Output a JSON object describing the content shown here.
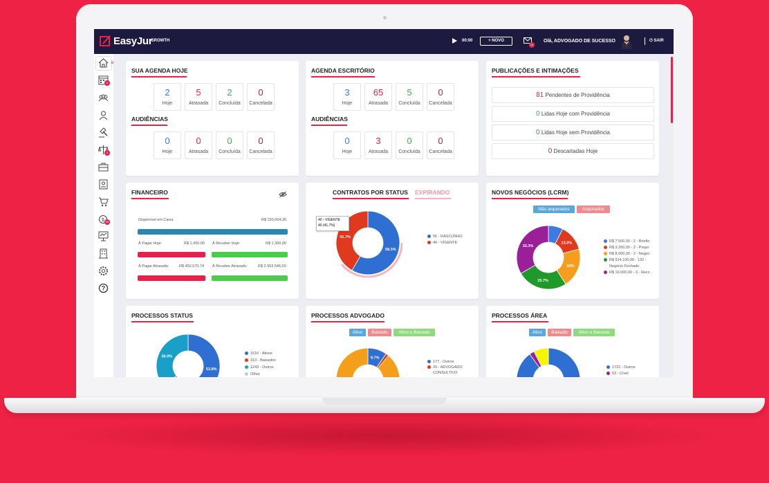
{
  "topbar": {
    "logo": "EasyJur",
    "plan": "GROWTH",
    "timer": "00:00",
    "new_button": "+ NOVO",
    "mail_badge": "19",
    "greeting": "Olá, ADVOGADO DE SUCESSO",
    "logout": "SAIR"
  },
  "sidebar": {
    "items": [
      "home-icon",
      "calendar-icon",
      "team-icon",
      "client-icon",
      "gavel-icon",
      "scale-icon",
      "briefcase-icon",
      "document-icon",
      "cart-icon",
      "finance-icon",
      "presentation-icon",
      "building-icon",
      "gear-icon",
      "help-icon"
    ],
    "badges": {
      "calendar": "8",
      "scale": "8",
      "finance": "99"
    }
  },
  "agenda_hoje": {
    "title": "SUA AGENDA HOJE",
    "stats": [
      {
        "value": "2",
        "label": "Hoje",
        "color": "#2f7fd6"
      },
      {
        "value": "5",
        "label": "Atrasada",
        "color": "#e5234a"
      },
      {
        "value": "2",
        "label": "Concluída",
        "color": "#36b54a"
      },
      {
        "value": "0",
        "label": "Cancelada",
        "color": "#b02a32"
      }
    ],
    "audiencias_title": "AUDIÊNCIAS",
    "audiencias": [
      {
        "value": "0",
        "label": "Hoje",
        "color": "#2f7fd6"
      },
      {
        "value": "0",
        "label": "Atrasada",
        "color": "#e5234a"
      },
      {
        "value": "0",
        "label": "Concluída",
        "color": "#36b54a"
      },
      {
        "value": "0",
        "label": "Cancelada",
        "color": "#b02a32"
      }
    ]
  },
  "agenda_escritorio": {
    "title": "AGENDA ESCRITÓRIO",
    "stats": [
      {
        "value": "3",
        "label": "Hoje",
        "color": "#2f7fd6"
      },
      {
        "value": "65",
        "label": "Atrasada",
        "color": "#e5234a"
      },
      {
        "value": "5",
        "label": "Concluída",
        "color": "#36b54a"
      },
      {
        "value": "0",
        "label": "Cancelada",
        "color": "#b02a32"
      }
    ],
    "audiencias_title": "AUDIÊNCIAS",
    "audiencias": [
      {
        "value": "0",
        "label": "Hoje",
        "color": "#2f7fd6"
      },
      {
        "value": "3",
        "label": "Atrasada",
        "color": "#e5234a"
      },
      {
        "value": "0",
        "label": "Concluída",
        "color": "#36b54a"
      },
      {
        "value": "0",
        "label": "Cancelada",
        "color": "#b02a32"
      }
    ]
  },
  "publicacoes": {
    "title": "PUBLICAÇÕES E INTIMAÇÕES",
    "rows": [
      {
        "value": "81",
        "label": "Pendentes de Providência",
        "color": "#e5234a"
      },
      {
        "value": "0",
        "label": "Lidas Hoje com Providência",
        "color": "#36b54a"
      },
      {
        "value": "0",
        "label": "Lidas Hoje sem Providência",
        "color": "#2f7fd6"
      },
      {
        "value": "0",
        "label": "Descartadas Hoje",
        "color": "#b02a32"
      }
    ]
  },
  "financeiro": {
    "title": "FINANCEIRO",
    "disponivel_label": "Disponível em Caixa",
    "disponivel_value": "R$ 150.004,30",
    "pagar_hoje_label": "À Pagar Hoje:",
    "pagar_hoje_value": "R$ 1.450,00",
    "receber_hoje_label": "À Receber Hoje:",
    "receber_hoje_value": "R$ 1.300,00",
    "pagar_atrasado_label": "À Pagar Atrasado:",
    "pagar_atrasado_value": "R$ 452.570,74",
    "receber_atrasado_label": "À Receber Atrasado:",
    "receber_atrasado_value": "R$ 2.953.546,00"
  },
  "contratos": {
    "title": "CONTRATOS POR STATUS",
    "tab2": "EXPIRANDO",
    "tooltip_line1": "40 - VIGENTE",
    "tooltip_line2": "40 (41.7%)",
    "legend": [
      {
        "label": "56 - RASCUNHO",
        "color": "#2f6fd2"
      },
      {
        "label": "40 - VIGENTE",
        "color": "#e03a1e"
      }
    ]
  },
  "novos_negocios": {
    "title": "NOVOS NEGÓCIOS (LCRM)",
    "tag1": "Não arquivados",
    "tag2": "Arquivados",
    "legend": [
      {
        "label": "R$ 7.500,00 - 2 - Briefin",
        "color": "#3d7be0"
      },
      {
        "label": "R$ 3.200,00 - 2 - Propo",
        "color": "#e03a1e"
      },
      {
        "label": "R$ 8.000,00 - 2 - Negoc",
        "color": "#f59e1b"
      },
      {
        "label": "R$ 914.100,00 - 132 -",
        "color": "#1f9a2a"
      },
      {
        "label": "Negócio Fechado",
        "color": ""
      },
      {
        "label": "R$ 10.000,00 - 3 - Reco",
        "color": "#9c1f9a"
      }
    ]
  },
  "processos_status": {
    "title": "PROCESSOS STATUS",
    "legend": [
      {
        "label": "1516 - Ativos",
        "color": "#2f6fd2"
      },
      {
        "label": "313 - Baixados",
        "color": "#e03a1e"
      },
      {
        "label": "1243 - Outros",
        "color": "#1aa0c8"
      },
      {
        "label": "Other",
        "color": "#c8c8c8"
      }
    ]
  },
  "processos_advogado": {
    "title": "PROCESSOS ADVOGADO",
    "tags": [
      "Ativo",
      "Baixado",
      "Ativo e Baixado"
    ],
    "legend": [
      {
        "label": "177 - Outros",
        "color": "#2f6fd2"
      },
      {
        "label": "20 - ADVOGADO",
        "color": "#e03a1e"
      },
      {
        "label": "CONSULTIVO",
        "color": ""
      }
    ]
  },
  "processos_area": {
    "title": "PROCESSOS ÁREA",
    "tags": [
      "Ativo",
      "Baixado",
      "Ativo e Baixado"
    ],
    "legend": [
      {
        "label": "1722 - Outros",
        "color": "#2f6fd2"
      },
      {
        "label": "53 - Cível",
        "color": "#9c1f9a"
      }
    ]
  },
  "chart_data": [
    {
      "type": "pie",
      "title": "CONTRATOS POR STATUS",
      "labels": [
        "RASCUNHO",
        "VIGENTE"
      ],
      "values": [
        56,
        40
      ],
      "percent_labels": [
        "58.3%",
        "41.7%"
      ],
      "colors": [
        "#2f6fd2",
        "#e03a1e"
      ]
    },
    {
      "type": "pie",
      "title": "NOVOS NEGÓCIOS (LCRM)",
      "labels": [
        "Briefin",
        "Propo",
        "Negoc",
        "Negócio Fechado",
        "Reco"
      ],
      "values": [
        7.4,
        13.3,
        20.0,
        25.7,
        33.3
      ],
      "percent_labels": [
        "",
        "13.3%",
        "20%",
        "25.7%",
        "33.3%"
      ],
      "colors": [
        "#3d7be0",
        "#e03a1e",
        "#f59e1b",
        "#1f9a2a",
        "#9c1f9a"
      ]
    },
    {
      "type": "pie",
      "title": "PROCESSOS STATUS",
      "labels": [
        "Ativos",
        "Baixados",
        "Outros"
      ],
      "values": [
        53.8,
        10.2,
        36.0
      ],
      "percent_labels": [
        "53.8%",
        "",
        "36.0%"
      ],
      "colors": [
        "#2f6fd2",
        "#e03a1e",
        "#1aa0c8"
      ]
    },
    {
      "type": "pie",
      "title": "PROCESSOS ADVOGADO",
      "labels": [
        "Outros",
        "ADVOGADO CONSULTIVO",
        "Other"
      ],
      "values": [
        9.7,
        1.5,
        88.8
      ],
      "percent_labels": [
        "9.7%",
        "",
        ""
      ],
      "colors": [
        "#2f6fd2",
        "#e03a1e",
        "#f59e1b"
      ]
    },
    {
      "type": "pie",
      "title": "PROCESSOS ÁREA",
      "labels": [
        "Outros",
        "Cível",
        "Other"
      ],
      "values": [
        90.0,
        2.5,
        7.5
      ],
      "percent_labels": [
        "",
        "",
        ""
      ],
      "colors": [
        "#2f6fd2",
        "#9c1f9a",
        "#f5f500"
      ]
    }
  ]
}
